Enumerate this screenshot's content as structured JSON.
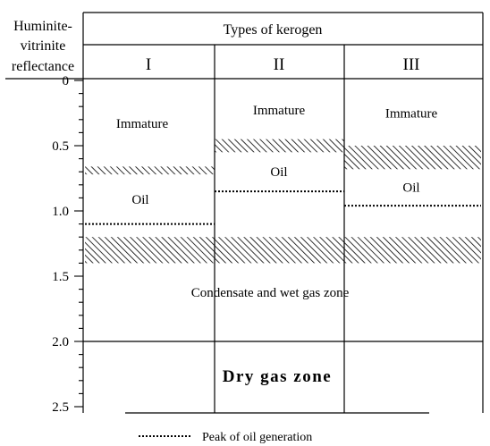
{
  "header": {
    "axis_title_lines": [
      "Huminite-",
      "vitrinite",
      "reflectance"
    ],
    "kerogen_title": "Types of kerogen",
    "kerogen_types": [
      "I",
      "II",
      "III"
    ]
  },
  "axis": {
    "ticks": [
      {
        "value": 0,
        "label": "0"
      },
      {
        "value": 0.5,
        "label": "0.5"
      },
      {
        "value": 1.0,
        "label": "1.0"
      },
      {
        "value": 1.5,
        "label": "1.5"
      },
      {
        "value": 2.0,
        "label": "2.0"
      },
      {
        "value": 2.5,
        "label": "2.5"
      }
    ],
    "minor_step": 0.1,
    "range": [
      0,
      2.5
    ]
  },
  "columns": [
    {
      "type": "I",
      "immature_label": "Immature",
      "oil_label": "Oil",
      "transition_1": [
        0.66,
        0.72
      ],
      "oil_peak": 1.1,
      "transition_2": [
        1.2,
        1.4
      ]
    },
    {
      "type": "II",
      "immature_label": "Immature",
      "oil_label": "Oil",
      "transition_1": [
        0.45,
        0.55
      ],
      "oil_peak": 0.85,
      "transition_2": [
        1.2,
        1.4
      ]
    },
    {
      "type": "III",
      "immature_label": "Immature",
      "oil_label": "Oil",
      "transition_1": [
        0.5,
        0.68
      ],
      "oil_peak": 0.96,
      "transition_2": [
        1.2,
        1.4
      ]
    }
  ],
  "zones": {
    "condensate_label": "Condensate and wet gas zone",
    "dry_gas_boundary": 2.0,
    "dry_gas_label": "Dry gas zone"
  },
  "legend": {
    "peak_label": "Peak of oil generation"
  },
  "colors": {
    "line": "#000000",
    "background": "#ffffff",
    "hatch": "#000000"
  }
}
